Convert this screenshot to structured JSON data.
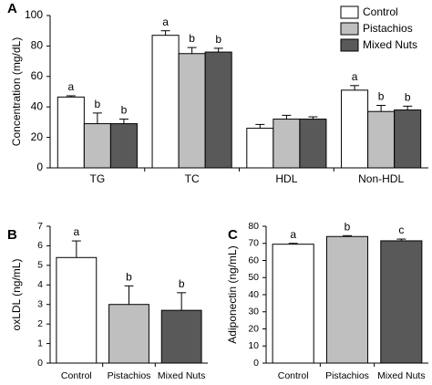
{
  "chart_data": [
    {
      "type": "bar",
      "panel": "A",
      "ylabel": "Concentration (mg/dL)",
      "categories": [
        "TG",
        "TC",
        "HDL",
        "Non-HDL"
      ],
      "series": [
        {
          "name": "Control",
          "color": "#ffffff",
          "values": [
            46.5,
            87,
            26,
            51
          ],
          "errors": [
            0.8,
            3,
            2.5,
            3
          ],
          "letters": [
            "a",
            "a",
            null,
            "a"
          ]
        },
        {
          "name": "Pistachios",
          "color": "#bfbfbf",
          "values": [
            29,
            75,
            32,
            37
          ],
          "errors": [
            7,
            4,
            2.5,
            4
          ],
          "letters": [
            "b",
            "b",
            null,
            "b"
          ]
        },
        {
          "name": "Mixed Nuts",
          "color": "#595959",
          "values": [
            29,
            76,
            32,
            38
          ],
          "errors": [
            3,
            2.5,
            1.5,
            2.5
          ],
          "letters": [
            "b",
            "b",
            null,
            "b"
          ]
        }
      ],
      "ylim": [
        0,
        100
      ],
      "yticks": [
        0,
        20,
        40,
        60,
        80,
        100
      ],
      "legend": "upper right"
    },
    {
      "type": "bar",
      "panel": "B",
      "ylabel": "oxLDL (ng/mL)",
      "categories": [
        "Control",
        "Pistachios",
        "Mixed Nuts"
      ],
      "values": [
        5.4,
        3.0,
        2.7
      ],
      "errors": [
        0.85,
        0.95,
        0.9
      ],
      "letters": [
        "a",
        "b",
        "b"
      ],
      "colors": [
        "#ffffff",
        "#bfbfbf",
        "#595959"
      ],
      "ylim": [
        0,
        7
      ],
      "yticks": [
        0,
        1,
        2,
        3,
        4,
        5,
        6,
        7
      ]
    },
    {
      "type": "bar",
      "panel": "C",
      "ylabel": "Adiponectin (ng/mL)",
      "categories": [
        "Control",
        "Pistachios",
        "Mixed Nuts"
      ],
      "values": [
        69.5,
        74,
        71.5
      ],
      "errors": [
        0.5,
        0.5,
        1
      ],
      "letters": [
        "a",
        "b",
        "c"
      ],
      "colors": [
        "#ffffff",
        "#bfbfbf",
        "#595959"
      ],
      "ylim": [
        0,
        80
      ],
      "yticks": [
        0,
        10,
        20,
        30,
        40,
        50,
        60,
        70,
        80
      ]
    }
  ]
}
